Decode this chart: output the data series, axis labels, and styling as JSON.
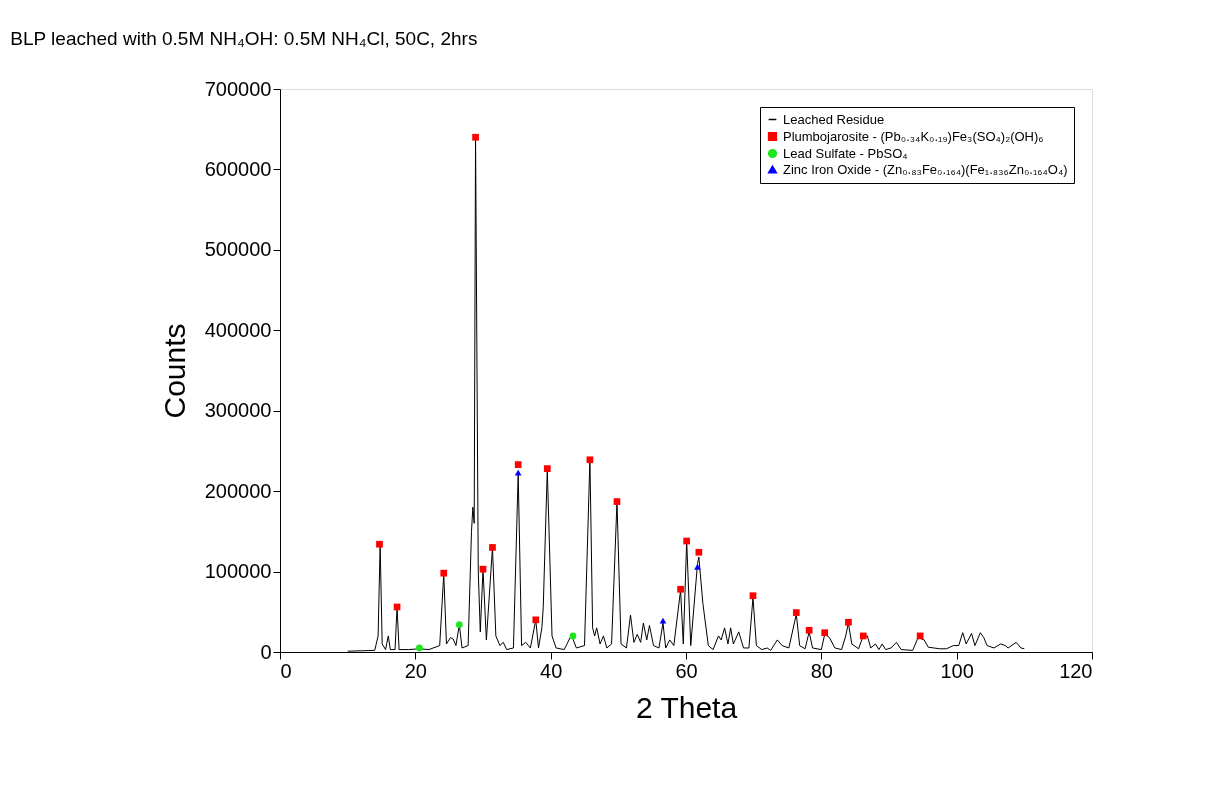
{
  "chart_data": {
    "type": "line",
    "title": "BLP leached with 0.5M NH₄OH: 0.5M NH₄Cl, 50C, 2hrs",
    "xlabel": "2 Theta",
    "ylabel": "Counts",
    "xlim": [
      0,
      120
    ],
    "xticks": [
      0,
      20,
      40,
      60,
      80,
      100,
      120
    ],
    "ylim": [
      0,
      700000
    ],
    "yticks": [
      0,
      100000,
      200000,
      300000,
      400000,
      500000,
      600000,
      700000
    ],
    "grid": false,
    "legend": "top right",
    "series": [
      {
        "name": "Leached Residue",
        "marker": "none",
        "line_style": "solid",
        "color": "#000000",
        "x": [
          10,
          14,
          14.5,
          14.8,
          15.1,
          15.6,
          16.0,
          16.3,
          17.0,
          17.3,
          17.6,
          19,
          20.6,
          22,
          23.6,
          24.2,
          24.6,
          25.2,
          25.6,
          26.0,
          26.5,
          26.9,
          27.8,
          28.3,
          28.5,
          28.7,
          28.9,
          29.3,
          29.6,
          30.0,
          30.5,
          31.4,
          31.9,
          32.5,
          33.0,
          33.5,
          34.5,
          35.2,
          35.7,
          36.3,
          37.0,
          37.8,
          38.2,
          38.7,
          38.9,
          39.5,
          40.2,
          40.8,
          42,
          43.0,
          43.3,
          43.8,
          45,
          45.8,
          46.2,
          46.5,
          46.8,
          47.3,
          47.8,
          48.3,
          49.0,
          49.8,
          50.4,
          51.2,
          51.8,
          52.3,
          52.8,
          53.3,
          53.7,
          54.2,
          54.6,
          55.2,
          56.0,
          56.6,
          57.0,
          57.6,
          58.2,
          59.2,
          59.6,
          60.1,
          60.7,
          61.7,
          61.9,
          62.5,
          63.3,
          64,
          64.8,
          65.2,
          65.7,
          66.2,
          66.6,
          67.0,
          67.8,
          68.5,
          69.3,
          69.9,
          70.4,
          71.2,
          72,
          72.5,
          73.5,
          74.2,
          75.2,
          76.3,
          76.8,
          77.6,
          78.2,
          78.7,
          80.0,
          80.5,
          81.2,
          82.0,
          83.0,
          83.6,
          84.0,
          84.5,
          85.5,
          86.1,
          86.8,
          87.3,
          88.0,
          88.5,
          89.0,
          89.5,
          90.3,
          91.1,
          91.8,
          93.5,
          94.3,
          95.2,
          95.8,
          97.5,
          98.5,
          99.5,
          100.3,
          100.9,
          101.4,
          102.2,
          102.7,
          103.5,
          104.0,
          104.5,
          105.5,
          106.5,
          107.2,
          107.6,
          108.8,
          109.5,
          110
        ],
        "values": [
          1000,
          2000,
          20000,
          134000,
          10000,
          3000,
          20000,
          3000,
          3000,
          56000,
          3000,
          3000,
          4000,
          3000,
          8000,
          97000,
          10000,
          18000,
          16000,
          8000,
          34000,
          5000,
          8000,
          150000,
          180000,
          160000,
          640000,
          100000,
          25000,
          103000,
          15000,
          130000,
          20000,
          8000,
          12000,
          3000,
          5000,
          222000,
          8000,
          12000,
          5000,
          40000,
          5000,
          30000,
          55000,
          227000,
          20000,
          5000,
          3000,
          20000,
          16000,
          5000,
          8000,
          239000,
          30000,
          20000,
          30000,
          10000,
          20000,
          5000,
          10000,
          187000,
          10000,
          5000,
          46000,
          12000,
          22000,
          12000,
          36000,
          15000,
          33000,
          8000,
          5000,
          36000,
          5000,
          15000,
          8000,
          77000,
          10000,
          138000,
          8000,
          110000,
          118000,
          60000,
          8000,
          3000,
          20000,
          15000,
          30000,
          10000,
          30000,
          10000,
          25000,
          5000,
          5000,
          68000,
          8000,
          3000,
          5000,
          2000,
          15000,
          8000,
          5000,
          47000,
          8000,
          4000,
          25000,
          5000,
          3000,
          22000,
          18000,
          5000,
          3000,
          20000,
          36000,
          10000,
          4000,
          18000,
          20000,
          5000,
          10000,
          3000,
          10000,
          3000,
          5000,
          12000,
          3000,
          2000,
          18000,
          15000,
          6000,
          4000,
          4000,
          8000,
          8000,
          24000,
          10000,
          23000,
          8000,
          24000,
          18000,
          8000,
          5000,
          10000,
          8000,
          5000,
          12000,
          5000,
          4000
        ]
      },
      {
        "name": "Plumbojarosite - (Pb₀.₃₄K₀.₁₉)Fe₃(SO₄)₂(OH)₆",
        "type": "scatter",
        "marker": "square",
        "color": "#ff0000",
        "x": [
          14.7,
          17.3,
          24.2,
          28.9,
          30.0,
          31.4,
          35.2,
          37.8,
          39.5,
          45.8,
          49.8,
          59.2,
          60.1,
          61.9,
          69.9,
          76.3,
          78.2,
          80.5,
          84.0,
          86.2,
          94.6
        ],
        "values": [
          134000,
          56000,
          98000,
          640000,
          103000,
          130000,
          233000,
          40000,
          228000,
          239000,
          187000,
          78000,
          138000,
          124000,
          70000,
          49000,
          27000,
          24000,
          37000,
          20000,
          20000
        ]
      },
      {
        "name": "Lead Sulfate - PbSO₄",
        "type": "scatter",
        "marker": "circle",
        "color": "#1ee61e",
        "x": [
          20.6,
          26.5,
          43.3
        ],
        "values": [
          5000,
          34000,
          20000
        ]
      },
      {
        "name": "Zinc Iron Oxide - (Zn₀.₈₃Fe₀.₁₆₄)(Fe₁.₈₃₆Zn₀.₁₆₄O₄)",
        "type": "scatter",
        "marker": "triangle",
        "color": "#0000ff",
        "x": [
          35.2,
          56.6,
          61.7
        ],
        "values": [
          223000,
          39000,
          106000
        ]
      }
    ]
  }
}
